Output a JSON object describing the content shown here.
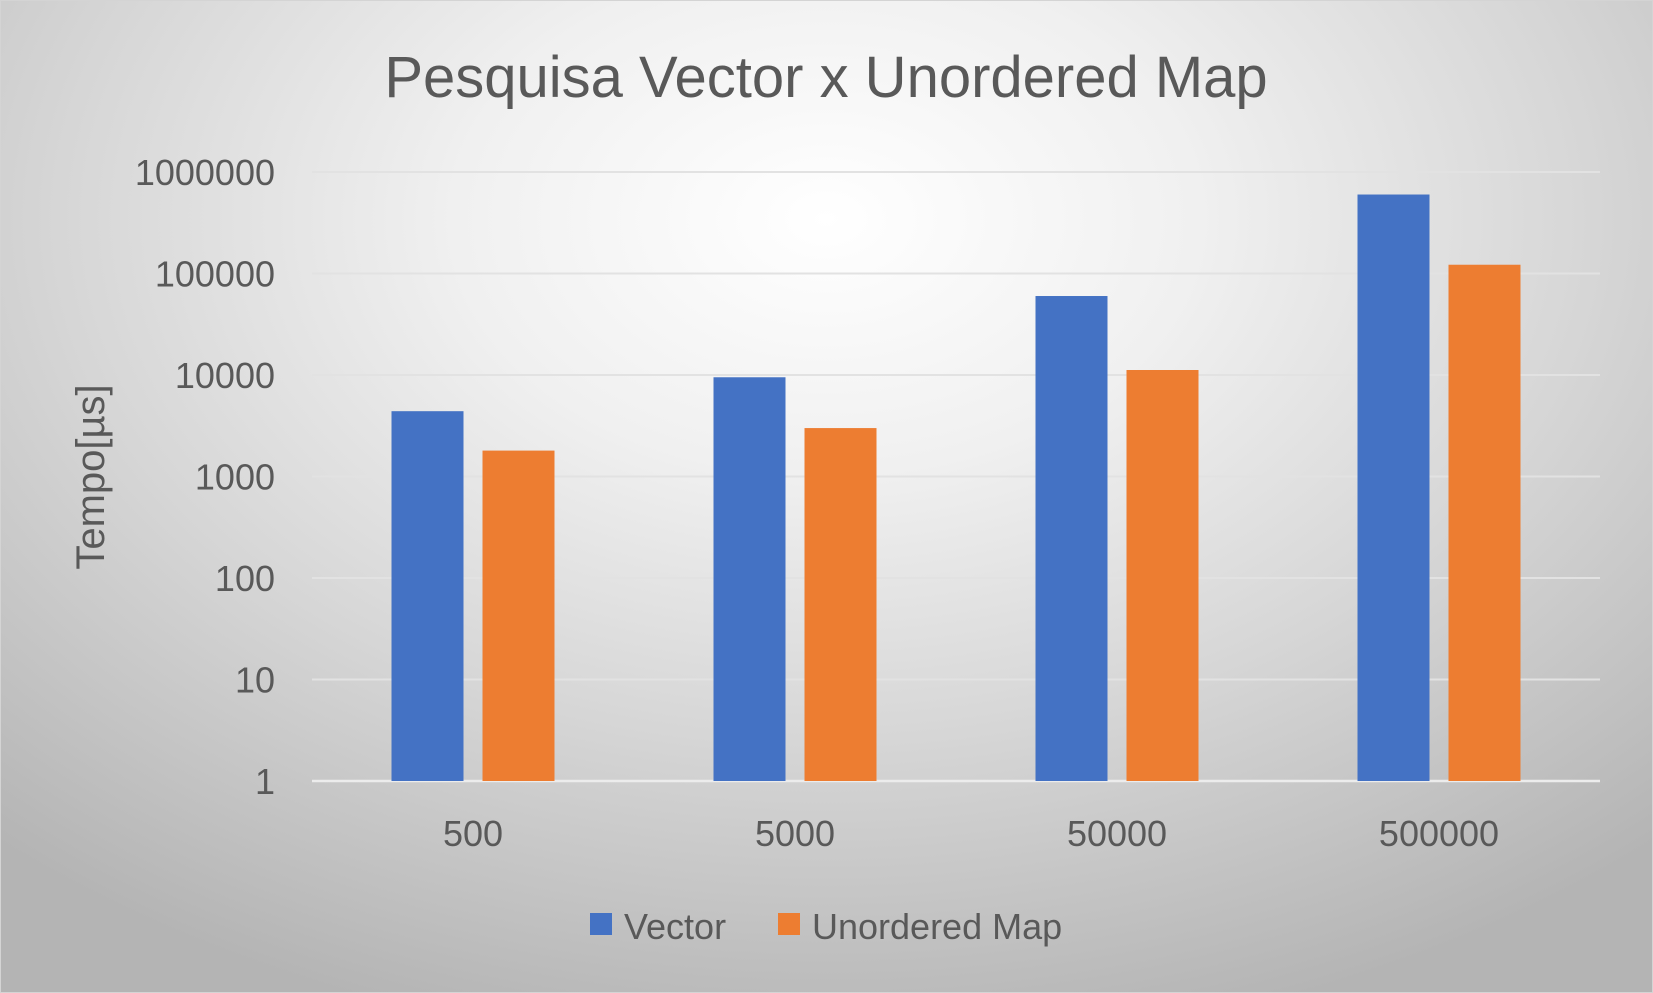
{
  "chart_data": {
    "type": "bar",
    "title": "Pesquisa Vector x Unordered Map",
    "xlabel": "",
    "ylabel": "Tempo[µs]",
    "y_scale": "log",
    "ylim": [
      1,
      1000000
    ],
    "y_ticks": [
      "1",
      "10",
      "100",
      "1000",
      "10000",
      "100000",
      "1000000"
    ],
    "categories": [
      "500",
      "5000",
      "50000",
      "500000"
    ],
    "series": [
      {
        "name": "Vector",
        "color": "#4472C4",
        "values": [
          4400,
          9500,
          60000,
          600000
        ]
      },
      {
        "name": "Unordered Map",
        "color": "#ED7D31",
        "values": [
          1800,
          3000,
          11200,
          122000
        ]
      }
    ],
    "grid": true,
    "legend_position": "bottom"
  }
}
